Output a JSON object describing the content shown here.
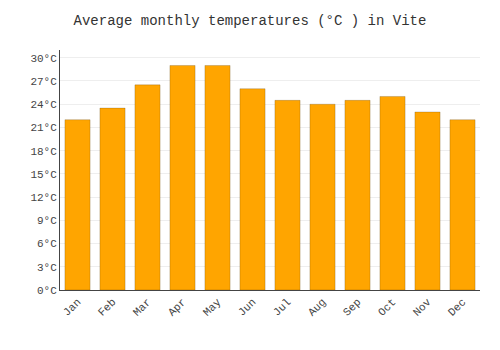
{
  "chart_data": {
    "type": "bar",
    "title": "Average monthly temperatures (°C ) in Vite",
    "categories": [
      "Jan",
      "Feb",
      "Mar",
      "Apr",
      "May",
      "Jun",
      "Jul",
      "Aug",
      "Sep",
      "Oct",
      "Nov",
      "Dec"
    ],
    "values": [
      22,
      23.5,
      26.5,
      29,
      29,
      26,
      24.5,
      24,
      24.5,
      25,
      23,
      22
    ],
    "color": "#FFA500",
    "ylim": [
      0,
      31
    ],
    "yticks": [
      {
        "value": 0,
        "label": "0°C"
      },
      {
        "value": 3,
        "label": "3°C"
      },
      {
        "value": 6,
        "label": "6°C"
      },
      {
        "value": 9,
        "label": "9°C"
      },
      {
        "value": 12,
        "label": "12°C"
      },
      {
        "value": 15,
        "label": "15°C"
      },
      {
        "value": 18,
        "label": "18°C"
      },
      {
        "value": 21,
        "label": "21°C"
      },
      {
        "value": 24,
        "label": "24°C"
      },
      {
        "value": 27,
        "label": "27°C"
      },
      {
        "value": 30,
        "label": "30°C"
      }
    ],
    "grid": true
  }
}
